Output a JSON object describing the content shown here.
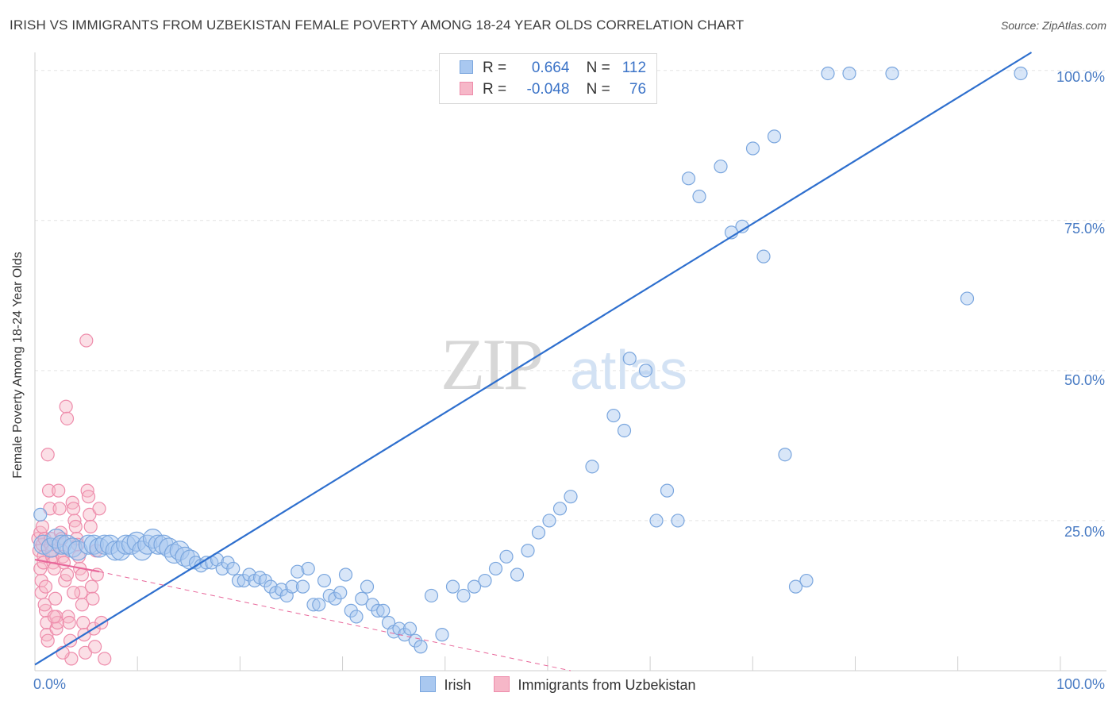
{
  "title": "IRISH VS IMMIGRANTS FROM UZBEKISTAN FEMALE POVERTY AMONG 18-24 YEAR OLDS CORRELATION CHART",
  "source": "Source: ZipAtlas.com",
  "watermark": {
    "zip": "ZIP",
    "atlas": "atlas"
  },
  "legend_top": {
    "row1": {
      "r_label": "R =",
      "r_value": "0.664",
      "n_label": "N =",
      "n_value": "112"
    },
    "row2": {
      "r_label": "R =",
      "r_value": "-0.048",
      "n_label": "N =",
      "n_value": "76"
    }
  },
  "colors": {
    "irish_fill": "#a9c8f0",
    "irish_stroke": "#7aa6de",
    "irish_line": "#2e6fce",
    "uzb_fill": "#f6b7c8",
    "uzb_stroke": "#ee8cab",
    "uzb_line": "#e8679a",
    "grid": "#e4e4e4",
    "tick_text": "#4a7cc4"
  },
  "chart_data": {
    "type": "scatter",
    "title": "IRISH VS IMMIGRANTS FROM UZBEKISTAN FEMALE POVERTY AMONG 18-24 YEAR OLDS CORRELATION CHART",
    "xlabel": "",
    "ylabel": "Female Poverty Among 18-24 Year Olds",
    "xlim": [
      0,
      100
    ],
    "ylim": [
      0,
      103
    ],
    "x_tick_labels": [
      "0.0%",
      "100.0%"
    ],
    "y_ticks": [
      25,
      50,
      75,
      100
    ],
    "y_tick_labels": [
      "25.0%",
      "50.0%",
      "75.0%",
      "100.0%"
    ],
    "grid": true,
    "legend": [
      "Irish",
      "Immigrants from Uzbekistan"
    ],
    "series": [
      {
        "name": "Irish",
        "R": 0.664,
        "N": 112,
        "trend": {
          "x0": 0,
          "y0": 1,
          "x1": 93,
          "y1": 103
        },
        "points": [
          [
            0.5,
            26
          ],
          [
            0.8,
            21
          ],
          [
            1.5,
            20.5
          ],
          [
            2,
            22
          ],
          [
            2.5,
            21
          ],
          [
            3,
            21
          ],
          [
            3.5,
            20.5
          ],
          [
            4,
            20
          ],
          [
            5,
            21
          ],
          [
            5.5,
            21
          ],
          [
            6,
            20.5
          ],
          [
            6.5,
            21
          ],
          [
            7,
            21
          ],
          [
            7.5,
            20
          ],
          [
            8,
            20
          ],
          [
            8.5,
            21
          ],
          [
            9,
            21
          ],
          [
            9.5,
            21.5
          ],
          [
            10,
            20
          ],
          [
            10.5,
            21
          ],
          [
            11,
            22
          ],
          [
            11.5,
            21
          ],
          [
            12,
            21
          ],
          [
            12.5,
            20.5
          ],
          [
            13,
            19.5
          ],
          [
            13.5,
            20
          ],
          [
            14,
            19
          ],
          [
            14.5,
            18.5
          ],
          [
            15,
            18
          ],
          [
            15.5,
            17.5
          ],
          [
            16,
            18
          ],
          [
            16.5,
            18
          ],
          [
            17,
            18.5
          ],
          [
            17.5,
            17
          ],
          [
            18,
            18
          ],
          [
            18.5,
            17
          ],
          [
            19,
            15
          ],
          [
            19.5,
            15
          ],
          [
            20,
            16
          ],
          [
            20.5,
            15
          ],
          [
            21,
            15.5
          ],
          [
            21.5,
            15
          ],
          [
            22,
            14
          ],
          [
            22.5,
            13
          ],
          [
            23,
            13.5
          ],
          [
            23.5,
            12.5
          ],
          [
            24,
            14
          ],
          [
            24.5,
            16.5
          ],
          [
            25,
            14
          ],
          [
            25.5,
            17
          ],
          [
            26,
            11
          ],
          [
            26.5,
            11
          ],
          [
            27,
            15
          ],
          [
            27.5,
            12.5
          ],
          [
            28,
            12
          ],
          [
            28.5,
            13
          ],
          [
            29,
            16
          ],
          [
            29.5,
            10
          ],
          [
            30,
            9
          ],
          [
            30.5,
            12
          ],
          [
            31,
            14
          ],
          [
            31.5,
            11
          ],
          [
            32,
            10
          ],
          [
            32.5,
            10
          ],
          [
            33,
            8
          ],
          [
            33.5,
            6.5
          ],
          [
            34,
            7
          ],
          [
            34.5,
            6
          ],
          [
            35,
            7
          ],
          [
            35.5,
            5
          ],
          [
            36,
            4
          ],
          [
            37,
            12.5
          ],
          [
            38,
            6
          ],
          [
            39,
            14
          ],
          [
            40,
            12.5
          ],
          [
            41,
            14
          ],
          [
            42,
            15
          ],
          [
            43,
            17
          ],
          [
            44,
            19
          ],
          [
            45,
            16
          ],
          [
            46,
            20
          ],
          [
            47,
            23
          ],
          [
            48,
            25
          ],
          [
            49,
            27
          ],
          [
            50,
            29
          ],
          [
            52,
            34
          ],
          [
            54,
            42.5
          ],
          [
            55,
            40
          ],
          [
            55.5,
            52
          ],
          [
            57,
            50
          ],
          [
            58,
            25
          ],
          [
            59,
            30
          ],
          [
            60,
            25
          ],
          [
            61,
            82
          ],
          [
            62,
            79
          ],
          [
            64,
            84
          ],
          [
            65,
            73
          ],
          [
            66,
            74
          ],
          [
            67,
            87
          ],
          [
            68,
            69
          ],
          [
            69,
            89
          ],
          [
            70,
            36
          ],
          [
            71,
            14
          ],
          [
            72,
            15
          ],
          [
            74,
            99.5
          ],
          [
            76,
            99.5
          ],
          [
            80,
            99.5
          ],
          [
            87,
            62
          ],
          [
            92,
            99.5
          ]
        ]
      },
      {
        "name": "Immigrants from Uzbekistan",
        "R": -0.048,
        "N": 76,
        "trend": {
          "x0": 0,
          "y0": 18.5,
          "x1": 6,
          "y1": 16.5
        },
        "trend_dashed": {
          "x0": 6,
          "y0": 16.5,
          "x1": 50,
          "y1": 0
        },
        "points": [
          [
            0.3,
            22
          ],
          [
            0.4,
            20
          ],
          [
            0.5,
            23
          ],
          [
            0.5,
            17
          ],
          [
            0.6,
            15
          ],
          [
            0.6,
            13
          ],
          [
            0.7,
            24
          ],
          [
            0.7,
            21
          ],
          [
            0.8,
            19
          ],
          [
            0.8,
            18
          ],
          [
            0.9,
            22
          ],
          [
            1,
            14
          ],
          [
            1,
            10
          ],
          [
            1.1,
            8
          ],
          [
            1.1,
            6
          ],
          [
            1.2,
            5
          ],
          [
            1.2,
            36
          ],
          [
            1.3,
            30
          ],
          [
            1.4,
            27
          ],
          [
            1.5,
            22
          ],
          [
            1.5,
            21
          ],
          [
            1.6,
            20
          ],
          [
            1.6,
            19
          ],
          [
            1.7,
            18
          ],
          [
            1.8,
            17
          ],
          [
            1.9,
            12
          ],
          [
            2,
            9
          ],
          [
            2,
            7
          ],
          [
            2.1,
            8
          ],
          [
            2.2,
            30
          ],
          [
            2.3,
            27
          ],
          [
            2.4,
            23
          ],
          [
            2.5,
            22
          ],
          [
            2.5,
            20
          ],
          [
            2.6,
            19
          ],
          [
            2.7,
            18
          ],
          [
            2.8,
            15
          ],
          [
            2.9,
            44
          ],
          [
            3,
            42
          ],
          [
            3,
            16
          ],
          [
            3.1,
            9
          ],
          [
            3.2,
            8
          ],
          [
            3.3,
            5
          ],
          [
            3.4,
            2
          ],
          [
            3.5,
            28
          ],
          [
            3.6,
            27
          ],
          [
            3.7,
            25
          ],
          [
            3.8,
            24
          ],
          [
            3.9,
            22
          ],
          [
            4,
            21
          ],
          [
            4.1,
            19
          ],
          [
            4.2,
            17
          ],
          [
            4.3,
            13
          ],
          [
            4.4,
            11
          ],
          [
            4.5,
            8
          ],
          [
            4.6,
            6
          ],
          [
            4.7,
            3
          ],
          [
            4.8,
            55
          ],
          [
            4.9,
            30
          ],
          [
            5,
            29
          ],
          [
            5.1,
            26
          ],
          [
            5.2,
            24
          ],
          [
            5.3,
            14
          ],
          [
            5.4,
            12
          ],
          [
            5.5,
            7
          ],
          [
            5.6,
            4
          ],
          [
            5.7,
            20
          ],
          [
            5.8,
            16
          ],
          [
            6,
            27
          ],
          [
            6.2,
            8
          ],
          [
            6.5,
            2
          ],
          [
            0.9,
            11
          ],
          [
            1.8,
            9
          ],
          [
            2.6,
            3
          ],
          [
            3.6,
            13
          ],
          [
            4.4,
            16
          ]
        ]
      }
    ]
  },
  "bottom_legend": {
    "irish": "Irish",
    "uzbekistan": "Immigrants from Uzbekistan"
  },
  "x_axis_labels": {
    "left": "0.0%",
    "right": "100.0%"
  },
  "y_axis_title": "Female Poverty Among 18-24 Year Olds"
}
